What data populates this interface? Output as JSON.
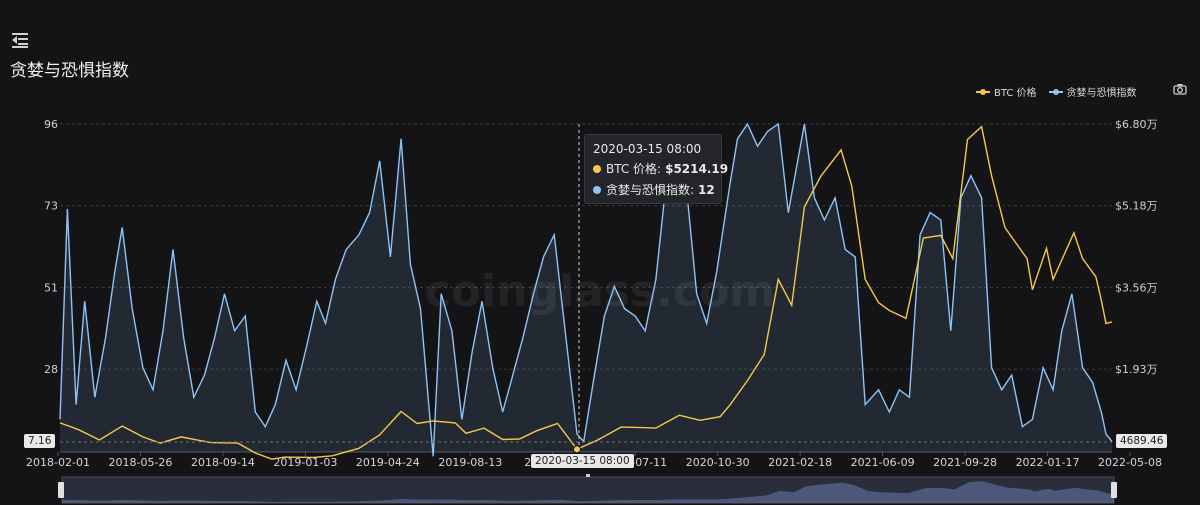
{
  "page": {
    "title": "贪婪与恐惧指数",
    "menu_icon": "menu-collapse-icon",
    "camera_icon": "camera-icon"
  },
  "tooltip": {
    "date": "2020-03-15 08:00",
    "rows": [
      {
        "label": "BTC 价格:",
        "value": "$5214.19",
        "color": "#f2c94c"
      },
      {
        "label": "贪婪与恐惧指数:",
        "value": "12",
        "color": "#8ec4f5"
      }
    ]
  },
  "crosshair": {
    "x_label": "2020-03-15 08:00"
  },
  "badges": {
    "left_min": "7.16",
    "right_min": "4689.46"
  },
  "watermark": "coinglass.com",
  "chart_data": {
    "type": "line",
    "x_ticks": [
      "2018-02-01",
      "2018-05-26",
      "2018-09-14",
      "2019-01-03",
      "2019-04-24",
      "2019-08-13",
      "2019-12-0",
      "2020-07-11",
      "2020-10-30",
      "2021-02-18",
      "2021-06-09",
      "2021-09-28",
      "2022-01-17",
      "2022-05-08"
    ],
    "x_range": [
      "2018-02-01",
      "2022-05-24"
    ],
    "y_left": {
      "ticks": [
        "96",
        "73",
        "51",
        "28"
      ],
      "min": 7.16,
      "max": 96
    },
    "y_right": {
      "ticks": [
        "$6.80万",
        "$5.18万",
        "$3.56万",
        "$1.93万"
      ],
      "min": 4689.46,
      "max": 68000
    },
    "legend": [
      {
        "name": "BTC 价格",
        "color": "#f2c94c"
      },
      {
        "name": "贪婪与恐惧指数",
        "color": "#8ec4f5"
      }
    ],
    "series": [
      {
        "name": "贪婪与恐惧指数",
        "axis": "left",
        "color": "#8ec4f5",
        "points": [
          [
            "2018-02-01",
            16
          ],
          [
            "2018-02-12",
            73
          ],
          [
            "2018-02-25",
            20
          ],
          [
            "2018-03-10",
            48
          ],
          [
            "2018-03-25",
            22
          ],
          [
            "2018-04-10",
            38
          ],
          [
            "2018-04-24",
            56
          ],
          [
            "2018-05-05",
            68
          ],
          [
            "2018-05-20",
            46
          ],
          [
            "2018-06-05",
            30
          ],
          [
            "2018-06-20",
            24
          ],
          [
            "2018-07-05",
            40
          ],
          [
            "2018-07-20",
            62
          ],
          [
            "2018-08-05",
            38
          ],
          [
            "2018-08-20",
            22
          ],
          [
            "2018-09-05",
            28
          ],
          [
            "2018-09-20",
            38
          ],
          [
            "2018-10-05",
            50
          ],
          [
            "2018-10-20",
            40
          ],
          [
            "2018-11-05",
            44
          ],
          [
            "2018-11-20",
            18
          ],
          [
            "2018-12-05",
            14
          ],
          [
            "2018-12-20",
            20
          ],
          [
            "2019-01-05",
            32
          ],
          [
            "2019-01-20",
            24
          ],
          [
            "2019-02-05",
            36
          ],
          [
            "2019-02-20",
            48
          ],
          [
            "2019-03-05",
            42
          ],
          [
            "2019-03-20",
            54
          ],
          [
            "2019-04-05",
            62
          ],
          [
            "2019-04-24",
            66
          ],
          [
            "2019-05-10",
            72
          ],
          [
            "2019-05-25",
            86
          ],
          [
            "2019-06-10",
            60
          ],
          [
            "2019-06-26",
            92
          ],
          [
            "2019-07-10",
            58
          ],
          [
            "2019-07-25",
            46
          ],
          [
            "2019-08-13",
            6
          ],
          [
            "2019-08-25",
            50
          ],
          [
            "2019-09-10",
            40
          ],
          [
            "2019-09-25",
            16
          ],
          [
            "2019-10-10",
            34
          ],
          [
            "2019-10-25",
            48
          ],
          [
            "2019-11-10",
            30
          ],
          [
            "2019-11-25",
            18
          ],
          [
            "2019-12-10",
            28
          ],
          [
            "2019-12-25",
            38
          ],
          [
            "2020-01-10",
            50
          ],
          [
            "2020-01-25",
            60
          ],
          [
            "2020-02-10",
            66
          ],
          [
            "2020-02-25",
            42
          ],
          [
            "2020-03-15",
            12
          ],
          [
            "2020-03-25",
            10
          ],
          [
            "2020-04-10",
            28
          ],
          [
            "2020-04-25",
            44
          ],
          [
            "2020-05-10",
            52
          ],
          [
            "2020-05-25",
            46
          ],
          [
            "2020-06-10",
            44
          ],
          [
            "2020-06-25",
            40
          ],
          [
            "2020-07-11",
            54
          ],
          [
            "2020-07-25",
            78
          ],
          [
            "2020-08-10",
            86
          ],
          [
            "2020-08-25",
            80
          ],
          [
            "2020-09-10",
            50
          ],
          [
            "2020-09-25",
            42
          ],
          [
            "2020-10-10",
            56
          ],
          [
            "2020-10-30",
            80
          ],
          [
            "2020-11-10",
            92
          ],
          [
            "2020-11-25",
            96
          ],
          [
            "2020-12-10",
            90
          ],
          [
            "2020-12-25",
            94
          ],
          [
            "2021-01-10",
            96
          ],
          [
            "2021-01-25",
            72
          ],
          [
            "2021-02-18",
            96
          ],
          [
            "2021-03-05",
            76
          ],
          [
            "2021-03-20",
            70
          ],
          [
            "2021-04-05",
            76
          ],
          [
            "2021-04-20",
            62
          ],
          [
            "2021-05-05",
            60
          ],
          [
            "2021-05-20",
            20
          ],
          [
            "2021-06-09",
            24
          ],
          [
            "2021-06-25",
            18
          ],
          [
            "2021-07-10",
            24
          ],
          [
            "2021-07-25",
            22
          ],
          [
            "2021-08-10",
            66
          ],
          [
            "2021-08-25",
            72
          ],
          [
            "2021-09-10",
            70
          ],
          [
            "2021-09-25",
            40
          ],
          [
            "2021-10-10",
            76
          ],
          [
            "2021-10-25",
            82
          ],
          [
            "2021-11-10",
            76
          ],
          [
            "2021-11-25",
            30
          ],
          [
            "2021-12-10",
            24
          ],
          [
            "2021-12-25",
            28
          ],
          [
            "2022-01-10",
            14
          ],
          [
            "2022-01-25",
            16
          ],
          [
            "2022-02-10",
            30
          ],
          [
            "2022-02-25",
            24
          ],
          [
            "2022-03-10",
            40
          ],
          [
            "2022-03-25",
            50
          ],
          [
            "2022-04-10",
            30
          ],
          [
            "2022-04-25",
            26
          ],
          [
            "2022-05-08",
            18
          ],
          [
            "2022-05-15",
            12
          ],
          [
            "2022-05-24",
            10
          ]
        ]
      },
      {
        "name": "BTC 价格",
        "axis": "right",
        "color": "#f2c94c",
        "points": [
          [
            "2018-02-01",
            10300
          ],
          [
            "2018-03-01",
            9000
          ],
          [
            "2018-04-01",
            7000
          ],
          [
            "2018-05-05",
            9700
          ],
          [
            "2018-06-05",
            7600
          ],
          [
            "2018-07-01",
            6400
          ],
          [
            "2018-08-01",
            7600
          ],
          [
            "2018-09-14",
            6500
          ],
          [
            "2018-10-25",
            6400
          ],
          [
            "2018-11-20",
            4500
          ],
          [
            "2018-12-15",
            3300
          ],
          [
            "2019-01-03",
            3700
          ],
          [
            "2019-02-15",
            3650
          ],
          [
            "2019-03-15",
            3950
          ],
          [
            "2019-04-24",
            5400
          ],
          [
            "2019-05-25",
            8000
          ],
          [
            "2019-06-26",
            12500
          ],
          [
            "2019-07-20",
            10200
          ],
          [
            "2019-08-13",
            10700
          ],
          [
            "2019-09-15",
            10300
          ],
          [
            "2019-10-01",
            8300
          ],
          [
            "2019-10-28",
            9300
          ],
          [
            "2019-11-25",
            7100
          ],
          [
            "2019-12-20",
            7200
          ],
          [
            "2020-01-15",
            8800
          ],
          [
            "2020-02-15",
            10200
          ],
          [
            "2020-03-15",
            5214.19
          ],
          [
            "2020-04-15",
            7000
          ],
          [
            "2020-05-20",
            9500
          ],
          [
            "2020-06-20",
            9400
          ],
          [
            "2020-07-11",
            9300
          ],
          [
            "2020-08-15",
            11800
          ],
          [
            "2020-09-15",
            10800
          ],
          [
            "2020-10-15",
            11500
          ],
          [
            "2020-10-30",
            13800
          ],
          [
            "2020-11-25",
            18500
          ],
          [
            "2020-12-20",
            23500
          ],
          [
            "2021-01-10",
            38000
          ],
          [
            "2021-01-30",
            33000
          ],
          [
            "2021-02-18",
            52000
          ],
          [
            "2021-03-15",
            58000
          ],
          [
            "2021-04-14",
            63000
          ],
          [
            "2021-04-30",
            56000
          ],
          [
            "2021-05-20",
            38000
          ],
          [
            "2021-06-09",
            33500
          ],
          [
            "2021-06-25",
            32000
          ],
          [
            "2021-07-20",
            30500
          ],
          [
            "2021-08-15",
            46000
          ],
          [
            "2021-09-10",
            46500
          ],
          [
            "2021-09-28",
            42000
          ],
          [
            "2021-10-20",
            65000
          ],
          [
            "2021-11-10",
            67500
          ],
          [
            "2021-11-25",
            58000
          ],
          [
            "2021-12-15",
            48000
          ],
          [
            "2022-01-17",
            42000
          ],
          [
            "2022-01-25",
            36000
          ],
          [
            "2022-02-15",
            44000
          ],
          [
            "2022-02-25",
            38000
          ],
          [
            "2022-03-28",
            47000
          ],
          [
            "2022-04-10",
            42000
          ],
          [
            "2022-04-30",
            38500
          ],
          [
            "2022-05-08",
            34000
          ],
          [
            "2022-05-15",
            29500
          ],
          [
            "2022-05-24",
            29800
          ]
        ]
      }
    ]
  }
}
